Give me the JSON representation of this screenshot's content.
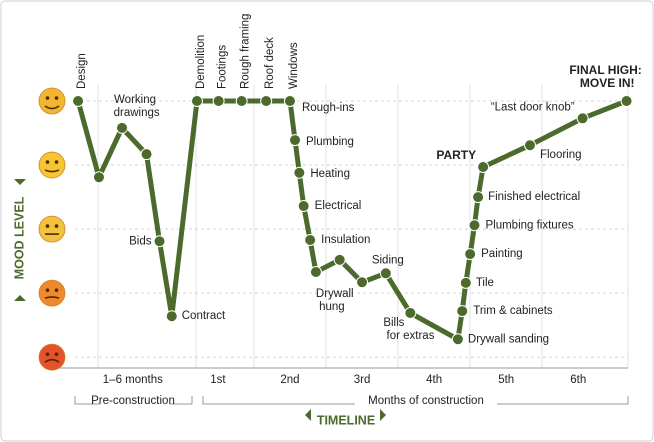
{
  "chart_data": {
    "type": "line",
    "y_label": "MOOD LEVEL",
    "x_label": "TIMELINE",
    "pre_label": "Pre-construction",
    "construction_label": "Months of construction",
    "x": [
      -0.94,
      -0.65,
      -0.33,
      0.01,
      0.19,
      0.36,
      0.71,
      1.01,
      1.33,
      1.67,
      2.0,
      2.0,
      2.07,
      2.13,
      2.19,
      2.28,
      2.36,
      2.69,
      3.0,
      3.33,
      3.67,
      4.33,
      4.39,
      4.44,
      4.5,
      4.56,
      4.61,
      4.68,
      5.33,
      6.06,
      6.67
    ],
    "series": [
      {
        "color": "#4b6a2c",
        "values": [
          5,
          3.81,
          4.58,
          4.17,
          2.81,
          1.64,
          5,
          5,
          5,
          5,
          5,
          5,
          4.39,
          3.88,
          3.36,
          2.83,
          2.33,
          2.52,
          2.17,
          2.31,
          1.69,
          1.28,
          1.72,
          2.16,
          2.61,
          3.06,
          3.5,
          3.97,
          4.31,
          4.73,
          5
        ]
      }
    ],
    "point_labels": [
      "Design",
      null,
      "Working drawings",
      null,
      "Bids",
      "Contract",
      "Demolition",
      "Footings",
      "Rough framing",
      "Roof deck",
      "Windows",
      "Rough-ins",
      "Plumbing",
      "Heating",
      "Electrical",
      "Insulation",
      "Drywall hung",
      null,
      null,
      "Siding",
      "Bills for extras",
      "Drywall sanding",
      "Trim & cabinets",
      "Tile",
      "Painting",
      "Plumbing fixtures",
      "Finished electrical",
      "PARTY",
      "Flooring",
      "“Last door knob”",
      "FINAL HIGH: MOVE IN!"
    ],
    "xlim": [
      -1.26,
      6.69
    ],
    "xticks": [
      {
        "value": -0.18,
        "label": "1–6 months"
      },
      {
        "value": 1,
        "label": "1st"
      },
      {
        "value": 2,
        "label": "2nd"
      },
      {
        "value": 3,
        "label": "3rd"
      },
      {
        "value": 4,
        "label": "4th"
      },
      {
        "value": 5,
        "label": "5th"
      },
      {
        "value": 6,
        "label": "6th"
      }
    ],
    "ylim": [
      0.8,
      5.25
    ],
    "yticks": [
      1,
      2,
      3,
      4,
      5
    ],
    "ytick_colors": [
      "#e4532a",
      "#ef8a2c",
      "#f2c23c",
      "#f6c531",
      "#f4b52e"
    ],
    "grid": true
  }
}
